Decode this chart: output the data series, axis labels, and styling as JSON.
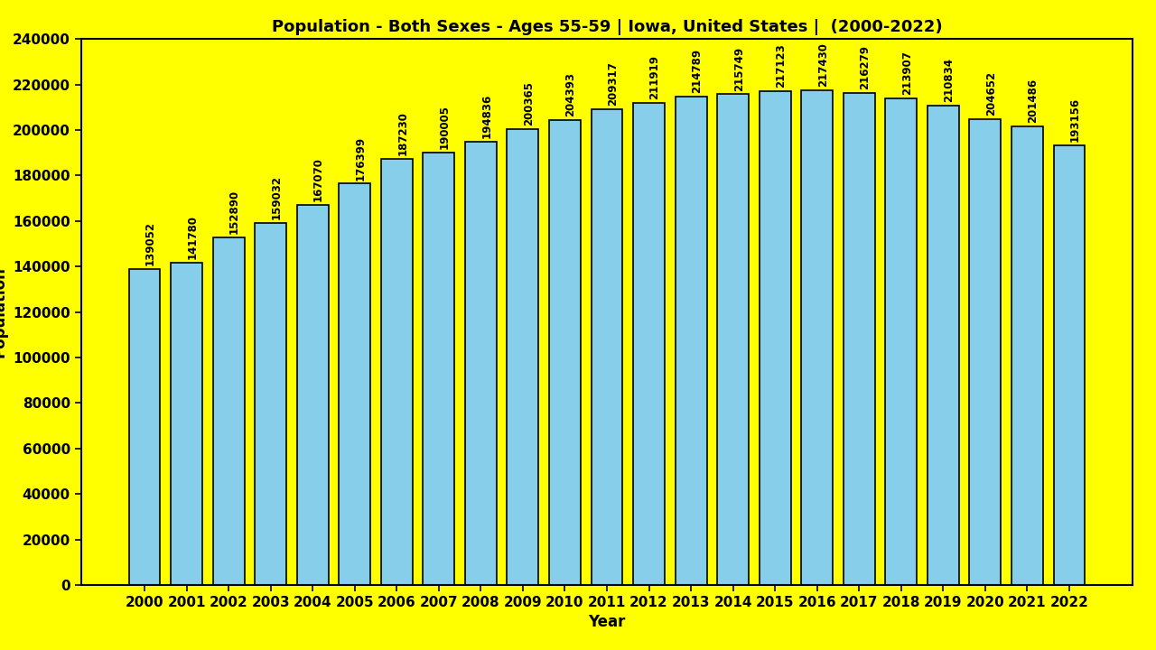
{
  "title": "Population - Both Sexes - Ages 55-59 | Iowa, United States |  (2000-2022)",
  "xlabel": "Year",
  "ylabel": "Population",
  "background_color": "#FFFF00",
  "bar_color": "#87CEEB",
  "bar_edgecolor": "#000000",
  "years": [
    2000,
    2001,
    2002,
    2003,
    2004,
    2005,
    2006,
    2007,
    2008,
    2009,
    2010,
    2011,
    2012,
    2013,
    2014,
    2015,
    2016,
    2017,
    2018,
    2019,
    2020,
    2021,
    2022
  ],
  "values": [
    139052,
    141780,
    152890,
    159032,
    167070,
    176399,
    187230,
    190005,
    194836,
    200365,
    204393,
    209317,
    211919,
    214789,
    215749,
    217123,
    217430,
    216279,
    213907,
    210834,
    204652,
    201486,
    193156
  ],
  "ylim": [
    0,
    240000
  ],
  "yticks": [
    0,
    20000,
    40000,
    60000,
    80000,
    100000,
    120000,
    140000,
    160000,
    180000,
    200000,
    220000,
    240000
  ],
  "title_fontsize": 13,
  "axis_label_fontsize": 12,
  "tick_fontsize": 11,
  "value_label_fontsize": 8.5,
  "value_label_color": "#000000",
  "tick_label_color": "#000000",
  "title_color": "#000000"
}
